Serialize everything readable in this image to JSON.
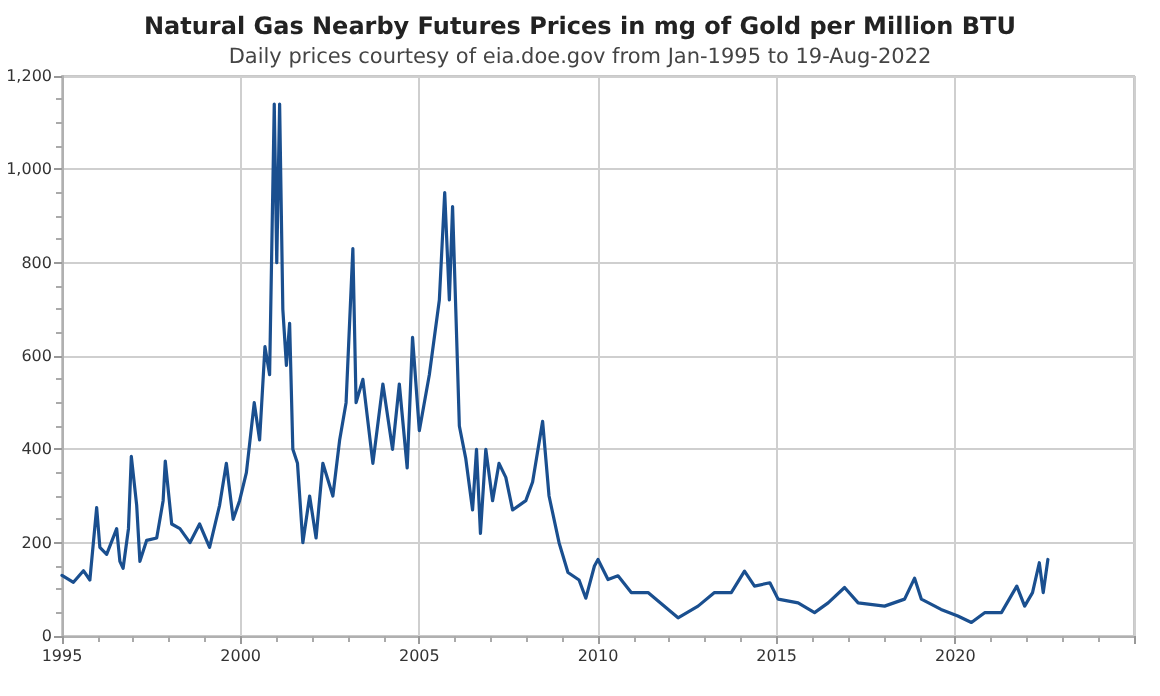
{
  "chart_data": {
    "type": "line",
    "title": "Natural Gas Nearby Futures Prices in mg of Gold per Million BTU",
    "subtitle": "Daily prices courtesy of eia.doe.gov from Jan-1995 to 19-Aug-2022",
    "x": [
      1995.0,
      1995.32,
      1995.6,
      1995.78,
      1995.97,
      1996.06,
      1996.25,
      1996.53,
      1996.62,
      1996.71,
      1996.86,
      1996.94,
      1997.09,
      1997.18,
      1997.37,
      1997.65,
      1997.83,
      1997.89,
      1998.07,
      1998.3,
      1998.58,
      1998.85,
      1999.13,
      1999.41,
      1999.6,
      1999.79,
      1999.97,
      2000.16,
      2000.38,
      2000.53,
      2000.68,
      2000.81,
      2000.94,
      2001.01,
      2001.09,
      2001.18,
      2001.28,
      2001.37,
      2001.46,
      2001.59,
      2001.74,
      2001.93,
      2002.11,
      2002.3,
      2002.58,
      2002.77,
      2002.95,
      2003.14,
      2003.23,
      2003.42,
      2003.7,
      2003.98,
      2004.25,
      2004.44,
      2004.66,
      2004.81,
      2005.0,
      2005.28,
      2005.56,
      2005.71,
      2005.84,
      2005.93,
      2006.02,
      2006.12,
      2006.3,
      2006.49,
      2006.6,
      2006.71,
      2006.86,
      2007.05,
      2007.23,
      2007.42,
      2007.61,
      2007.98,
      2008.17,
      2008.45,
      2008.63,
      2008.91,
      2009.16,
      2009.47,
      2009.66,
      2009.9,
      2010.0,
      2010.28,
      2010.56,
      2010.93,
      2011.4,
      2012.24,
      2012.8,
      2013.26,
      2013.73,
      2014.1,
      2014.38,
      2014.81,
      2015.04,
      2015.6,
      2016.06,
      2016.44,
      2016.9,
      2017.28,
      2018.02,
      2018.58,
      2018.86,
      2019.05,
      2019.6,
      2020.07,
      2020.45,
      2020.82,
      2021.29,
      2021.72,
      2021.94,
      2022.16,
      2022.35,
      2022.46,
      2022.59
    ],
    "series": [
      {
        "color": "#1a4f8f",
        "values": [
          130,
          115,
          140,
          120,
          275,
          190,
          175,
          230,
          160,
          145,
          230,
          385,
          280,
          160,
          205,
          210,
          290,
          375,
          240,
          230,
          200,
          240,
          190,
          280,
          370,
          250,
          290,
          350,
          500,
          420,
          620,
          560,
          1140,
          800,
          1140,
          700,
          580,
          670,
          400,
          370,
          200,
          300,
          210,
          370,
          300,
          420,
          500,
          830,
          500,
          550,
          370,
          540,
          400,
          540,
          360,
          640,
          440,
          560,
          720,
          950,
          720,
          920,
          700,
          450,
          380,
          270,
          400,
          220,
          400,
          290,
          370,
          340,
          270,
          290,
          330,
          460,
          300,
          200,
          136,
          120,
          81,
          150,
          164,
          121,
          129,
          93,
          93,
          39,
          64,
          93,
          93,
          139,
          107,
          114,
          79,
          71,
          50,
          71,
          104,
          71,
          64,
          79,
          124,
          79,
          57,
          43,
          29,
          50,
          50,
          107,
          64,
          93,
          157,
          93,
          164
        ]
      }
    ],
    "xlim": [
      1995,
      2025
    ],
    "xticks": [
      1995,
      2000,
      2005,
      2010,
      2015,
      2020,
      {
        "value": 2025,
        "label": null
      }
    ],
    "ylim": [
      0,
      1200
    ],
    "yticks": [
      0,
      200,
      400,
      600,
      800,
      {
        "value": 1000,
        "label": "1,000"
      },
      {
        "value": 1200,
        "label": "1,200"
      }
    ],
    "grid": true,
    "marker": "none",
    "line_style": "solid"
  }
}
